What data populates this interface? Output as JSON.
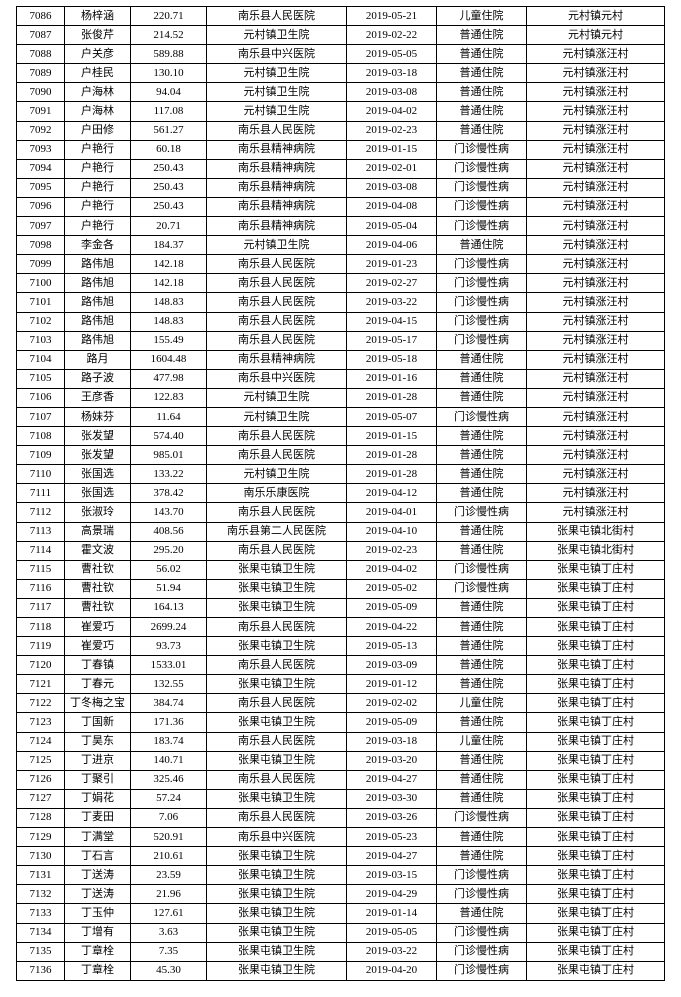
{
  "table": {
    "columns": 7,
    "rows": [
      [
        "7086",
        "杨梓涵",
        "220.71",
        "南乐县人民医院",
        "2019-05-21",
        "儿童住院",
        "元村镇元村"
      ],
      [
        "7087",
        "张俊芹",
        "214.52",
        "元村镇卫生院",
        "2019-02-22",
        "普通住院",
        "元村镇元村"
      ],
      [
        "7088",
        "户关彦",
        "589.88",
        "南乐县中兴医院",
        "2019-05-05",
        "普通住院",
        "元村镇涨汪村"
      ],
      [
        "7089",
        "户桂民",
        "130.10",
        "元村镇卫生院",
        "2019-03-18",
        "普通住院",
        "元村镇涨汪村"
      ],
      [
        "7090",
        "户海林",
        "94.04",
        "元村镇卫生院",
        "2019-03-08",
        "普通住院",
        "元村镇涨汪村"
      ],
      [
        "7091",
        "户海林",
        "117.08",
        "元村镇卫生院",
        "2019-04-02",
        "普通住院",
        "元村镇涨汪村"
      ],
      [
        "7092",
        "户田修",
        "561.27",
        "南乐县人民医院",
        "2019-02-23",
        "普通住院",
        "元村镇涨汪村"
      ],
      [
        "7093",
        "户艳行",
        "60.18",
        "南乐县精神病院",
        "2019-01-15",
        "门诊慢性病",
        "元村镇涨汪村"
      ],
      [
        "7094",
        "户艳行",
        "250.43",
        "南乐县精神病院",
        "2019-02-01",
        "门诊慢性病",
        "元村镇涨汪村"
      ],
      [
        "7095",
        "户艳行",
        "250.43",
        "南乐县精神病院",
        "2019-03-08",
        "门诊慢性病",
        "元村镇涨汪村"
      ],
      [
        "7096",
        "户艳行",
        "250.43",
        "南乐县精神病院",
        "2019-04-08",
        "门诊慢性病",
        "元村镇涨汪村"
      ],
      [
        "7097",
        "户艳行",
        "20.71",
        "南乐县精神病院",
        "2019-05-04",
        "门诊慢性病",
        "元村镇涨汪村"
      ],
      [
        "7098",
        "李金各",
        "184.37",
        "元村镇卫生院",
        "2019-04-06",
        "普通住院",
        "元村镇涨汪村"
      ],
      [
        "7099",
        "路伟旭",
        "142.18",
        "南乐县人民医院",
        "2019-01-23",
        "门诊慢性病",
        "元村镇涨汪村"
      ],
      [
        "7100",
        "路伟旭",
        "142.18",
        "南乐县人民医院",
        "2019-02-27",
        "门诊慢性病",
        "元村镇涨汪村"
      ],
      [
        "7101",
        "路伟旭",
        "148.83",
        "南乐县人民医院",
        "2019-03-22",
        "门诊慢性病",
        "元村镇涨汪村"
      ],
      [
        "7102",
        "路伟旭",
        "148.83",
        "南乐县人民医院",
        "2019-04-15",
        "门诊慢性病",
        "元村镇涨汪村"
      ],
      [
        "7103",
        "路伟旭",
        "155.49",
        "南乐县人民医院",
        "2019-05-17",
        "门诊慢性病",
        "元村镇涨汪村"
      ],
      [
        "7104",
        "路月",
        "1604.48",
        "南乐县精神病院",
        "2019-05-18",
        "普通住院",
        "元村镇涨汪村"
      ],
      [
        "7105",
        "路子波",
        "477.98",
        "南乐县中兴医院",
        "2019-01-16",
        "普通住院",
        "元村镇涨汪村"
      ],
      [
        "7106",
        "王彦香",
        "122.83",
        "元村镇卫生院",
        "2019-01-28",
        "普通住院",
        "元村镇涨汪村"
      ],
      [
        "7107",
        "杨妹芬",
        "11.64",
        "元村镇卫生院",
        "2019-05-07",
        "门诊慢性病",
        "元村镇涨汪村"
      ],
      [
        "7108",
        "张发望",
        "574.40",
        "南乐县人民医院",
        "2019-01-15",
        "普通住院",
        "元村镇涨汪村"
      ],
      [
        "7109",
        "张发望",
        "985.01",
        "南乐县人民医院",
        "2019-01-28",
        "普通住院",
        "元村镇涨汪村"
      ],
      [
        "7110",
        "张国选",
        "133.22",
        "元村镇卫生院",
        "2019-01-28",
        "普通住院",
        "元村镇涨汪村"
      ],
      [
        "7111",
        "张国选",
        "378.42",
        "南乐乐康医院",
        "2019-04-12",
        "普通住院",
        "元村镇涨汪村"
      ],
      [
        "7112",
        "张淑玲",
        "143.70",
        "南乐县人民医院",
        "2019-04-01",
        "门诊慢性病",
        "元村镇涨汪村"
      ],
      [
        "7113",
        "高景瑞",
        "408.56",
        "南乐县第二人民医院",
        "2019-04-10",
        "普通住院",
        "张果屯镇北街村"
      ],
      [
        "7114",
        "霍文波",
        "295.20",
        "南乐县人民医院",
        "2019-02-23",
        "普通住院",
        "张果屯镇北街村"
      ],
      [
        "7115",
        "曹社钦",
        "56.02",
        "张果屯镇卫生院",
        "2019-04-02",
        "门诊慢性病",
        "张果屯镇丁庄村"
      ],
      [
        "7116",
        "曹社钦",
        "51.94",
        "张果屯镇卫生院",
        "2019-05-02",
        "门诊慢性病",
        "张果屯镇丁庄村"
      ],
      [
        "7117",
        "曹社钦",
        "164.13",
        "张果屯镇卫生院",
        "2019-05-09",
        "普通住院",
        "张果屯镇丁庄村"
      ],
      [
        "7118",
        "崔爱巧",
        "2699.24",
        "南乐县人民医院",
        "2019-04-22",
        "普通住院",
        "张果屯镇丁庄村"
      ],
      [
        "7119",
        "崔爱巧",
        "93.73",
        "张果屯镇卫生院",
        "2019-05-13",
        "普通住院",
        "张果屯镇丁庄村"
      ],
      [
        "7120",
        "丁春镇",
        "1533.01",
        "南乐县人民医院",
        "2019-03-09",
        "普通住院",
        "张果屯镇丁庄村"
      ],
      [
        "7121",
        "丁春元",
        "132.55",
        "张果屯镇卫生院",
        "2019-01-12",
        "普通住院",
        "张果屯镇丁庄村"
      ],
      [
        "7122",
        "丁冬梅之宝",
        "384.74",
        "南乐县人民医院",
        "2019-02-02",
        "儿童住院",
        "张果屯镇丁庄村"
      ],
      [
        "7123",
        "丁国新",
        "171.36",
        "张果屯镇卫生院",
        "2019-05-09",
        "普通住院",
        "张果屯镇丁庄村"
      ],
      [
        "7124",
        "丁昊东",
        "183.74",
        "南乐县人民医院",
        "2019-03-18",
        "儿童住院",
        "张果屯镇丁庄村"
      ],
      [
        "7125",
        "丁进京",
        "140.71",
        "张果屯镇卫生院",
        "2019-03-20",
        "普通住院",
        "张果屯镇丁庄村"
      ],
      [
        "7126",
        "丁聚引",
        "325.46",
        "南乐县人民医院",
        "2019-04-27",
        "普通住院",
        "张果屯镇丁庄村"
      ],
      [
        "7127",
        "丁娟花",
        "57.24",
        "张果屯镇卫生院",
        "2019-03-30",
        "普通住院",
        "张果屯镇丁庄村"
      ],
      [
        "7128",
        "丁麦田",
        "7.06",
        "南乐县人民医院",
        "2019-03-26",
        "门诊慢性病",
        "张果屯镇丁庄村"
      ],
      [
        "7129",
        "丁满堂",
        "520.91",
        "南乐县中兴医院",
        "2019-05-23",
        "普通住院",
        "张果屯镇丁庄村"
      ],
      [
        "7130",
        "丁石言",
        "210.61",
        "张果屯镇卫生院",
        "2019-04-27",
        "普通住院",
        "张果屯镇丁庄村"
      ],
      [
        "7131",
        "丁送涛",
        "23.59",
        "张果屯镇卫生院",
        "2019-03-15",
        "门诊慢性病",
        "张果屯镇丁庄村"
      ],
      [
        "7132",
        "丁送涛",
        "21.96",
        "张果屯镇卫生院",
        "2019-04-29",
        "门诊慢性病",
        "张果屯镇丁庄村"
      ],
      [
        "7133",
        "丁玉仲",
        "127.61",
        "张果屯镇卫生院",
        "2019-01-14",
        "普通住院",
        "张果屯镇丁庄村"
      ],
      [
        "7134",
        "丁增有",
        "3.63",
        "张果屯镇卫生院",
        "2019-05-05",
        "门诊慢性病",
        "张果屯镇丁庄村"
      ],
      [
        "7135",
        "丁章栓",
        "7.35",
        "张果屯镇卫生院",
        "2019-03-22",
        "门诊慢性病",
        "张果屯镇丁庄村"
      ],
      [
        "7136",
        "丁章栓",
        "45.30",
        "张果屯镇卫生院",
        "2019-04-20",
        "门诊慢性病",
        "张果屯镇丁庄村"
      ]
    ]
  }
}
